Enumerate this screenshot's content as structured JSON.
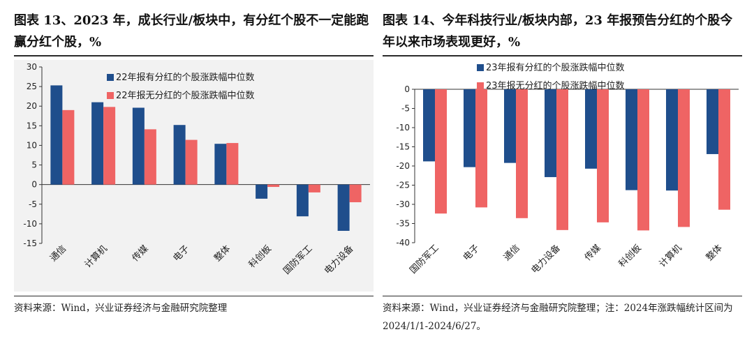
{
  "left": {
    "title": "图表 13、2023 年，成长行业/板块中，有分红个股不一定能跑赢分红个股，%",
    "source": "资料来源：Wind，兴业证券经济与金融研究院整理",
    "chart_data": {
      "type": "bar",
      "categories": [
        "通信",
        "计算机",
        "传媒",
        "电子",
        "整体",
        "科创板",
        "国防军工",
        "电力设备"
      ],
      "series": [
        {
          "name": "22年报有分红的个股涨跌幅中位数",
          "color": "#1f4e8c",
          "values": [
            25.3,
            21.0,
            19.6,
            15.2,
            10.4,
            -3.6,
            -8.1,
            -11.8
          ]
        },
        {
          "name": "22年报无分红的个股涨跌幅中位数",
          "color": "#ef6464",
          "values": [
            19.0,
            19.8,
            14.1,
            11.4,
            10.6,
            -0.6,
            -2.0,
            -4.5
          ]
        }
      ],
      "ylim": [
        -15,
        30
      ],
      "yticks": [
        30,
        25,
        20,
        15,
        10,
        5,
        0,
        -5,
        -10,
        -15
      ],
      "legend": "top-center",
      "grid": false
    }
  },
  "right": {
    "title": "图表 14、今年科技行业/板块内部，23 年报预告分红的个股今年以来市场表现更好，%",
    "source": "资料来源：Wind，兴业证券经济与金融研究院整理；注：2024年涨跌幅统计区间为 2024/1/1-2024/6/27。",
    "chart_data": {
      "type": "bar",
      "categories": [
        "国防军工",
        "电子",
        "通信",
        "电力设备",
        "传媒",
        "科创板",
        "计算机",
        "整体"
      ],
      "series": [
        {
          "name": "23年报有分红的个股涨跌幅中位数",
          "color": "#1f4e8c",
          "values": [
            -18.8,
            -20.3,
            -19.2,
            -22.9,
            -20.7,
            -26.3,
            -26.4,
            -16.9
          ]
        },
        {
          "name": "23年报无分红的个股涨跌幅中位数",
          "color": "#ef6464",
          "values": [
            -32.4,
            -30.8,
            -33.6,
            -36.7,
            -34.7,
            -36.8,
            -35.9,
            -31.4
          ]
        }
      ],
      "ylim": [
        -40,
        0
      ],
      "yticks": [
        0,
        -5,
        -10,
        -15,
        -20,
        -25,
        -30,
        -35,
        -40
      ],
      "legend": "top-center",
      "grid": false
    }
  }
}
